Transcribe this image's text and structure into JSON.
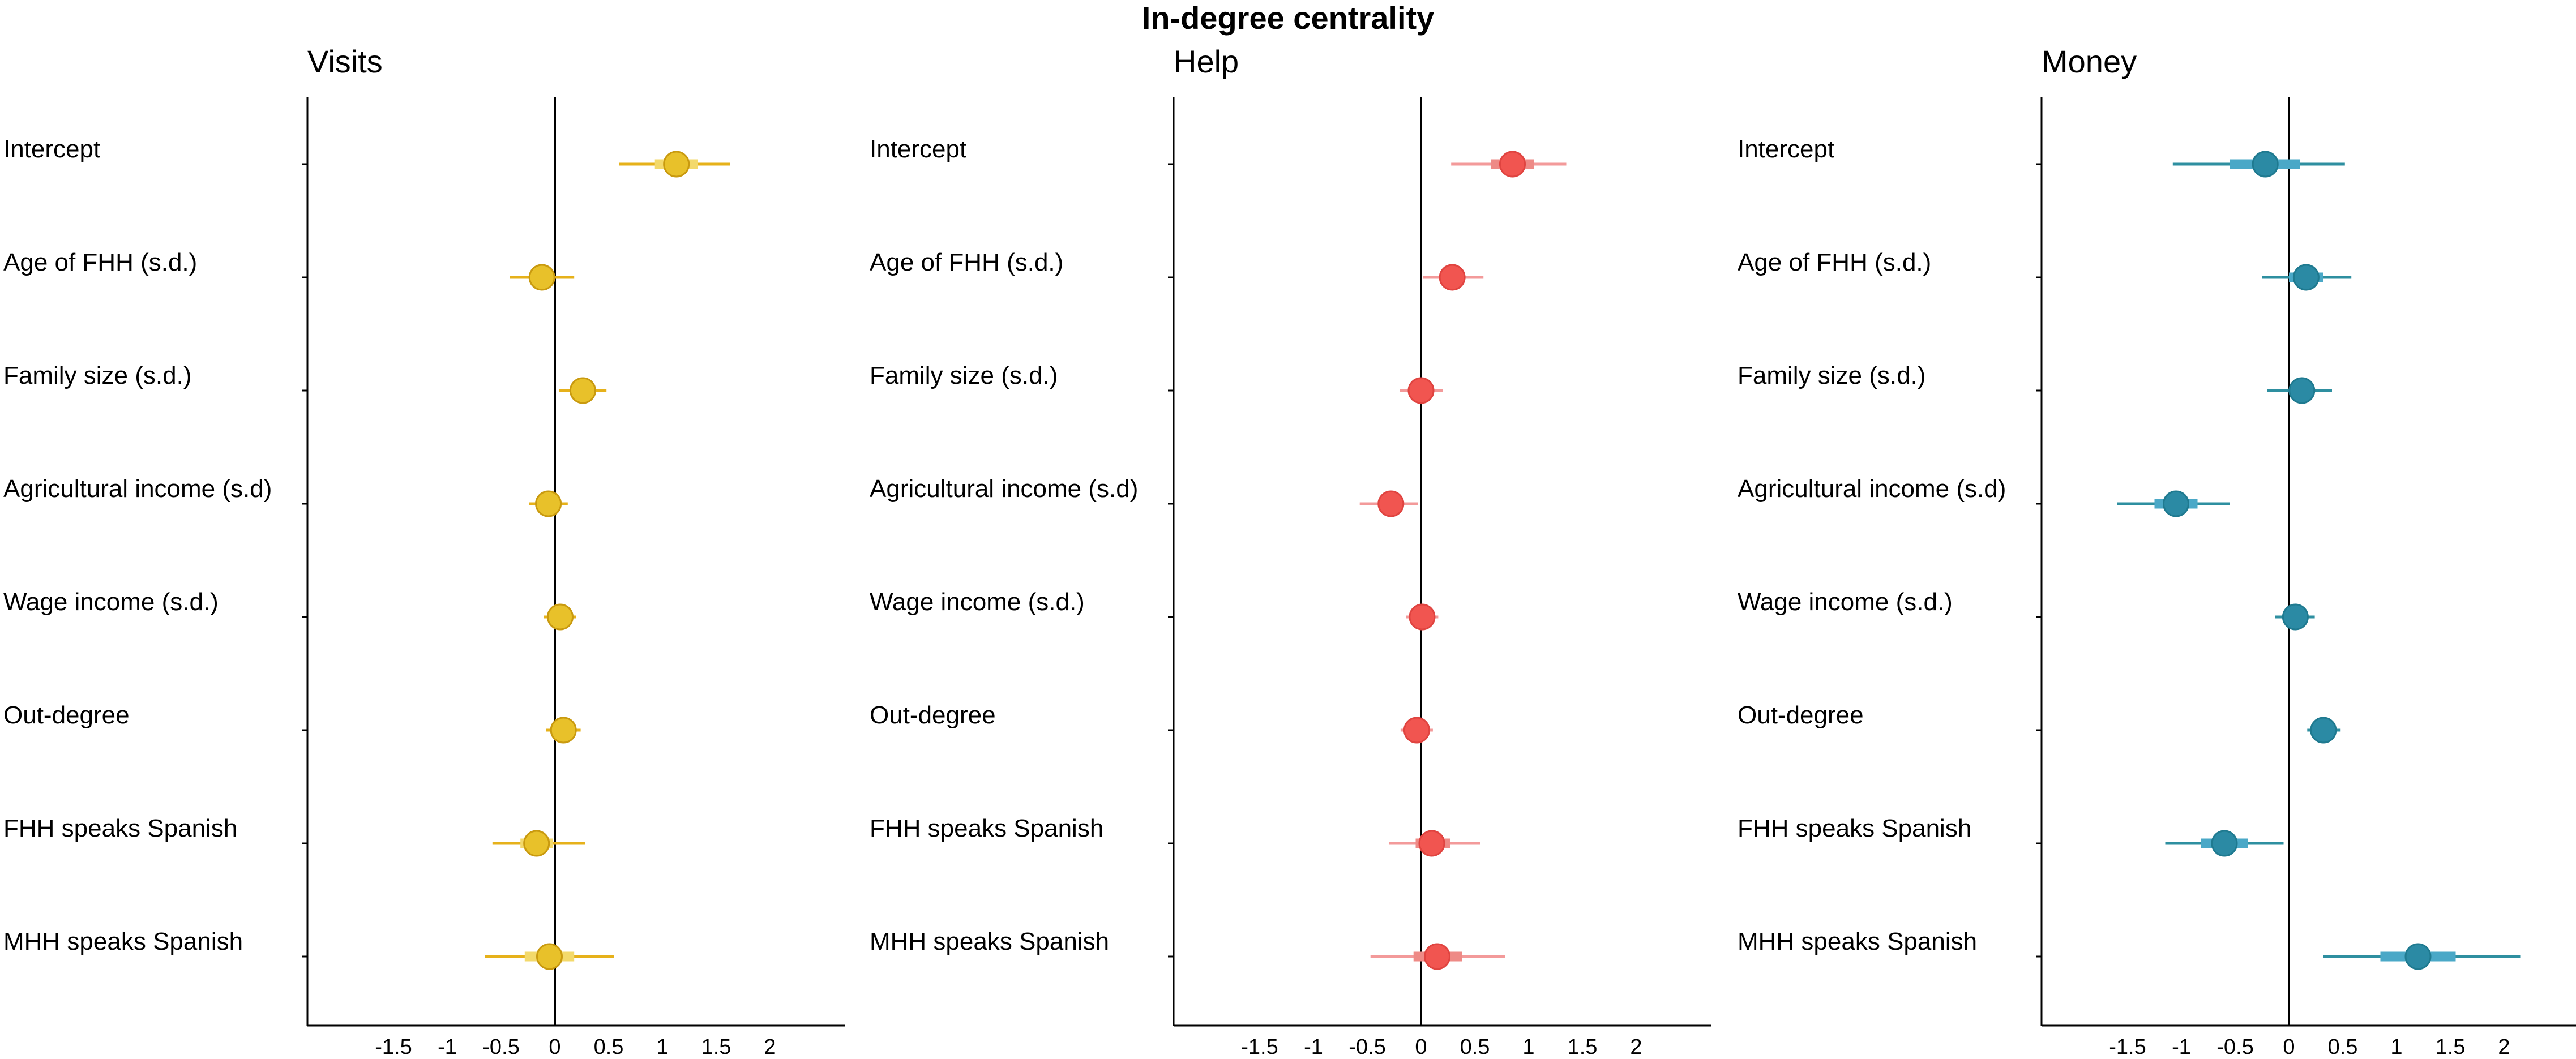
{
  "title": "In-degree centrality",
  "chart_data": [
    {
      "type": "forest",
      "title": "Visits",
      "color": "#E6B11A",
      "point_fill": "#E8C12A",
      "point_stroke": "#C99A0F",
      "inner_color": "#F3D96B",
      "xlim": [
        -2.3,
        2.7
      ],
      "ticks": [
        -1.5,
        -1,
        -0.5,
        0,
        0.5,
        1,
        1.5,
        2
      ],
      "tick_labels": [
        "-1.5",
        "-1",
        "-0.5",
        "0",
        "0.5",
        "1",
        "1.5",
        "2"
      ],
      "rows": [
        {
          "label": "Intercept",
          "est": 1.13,
          "lo95": 0.6,
          "hi95": 1.63,
          "lo50": 0.93,
          "hi50": 1.33
        },
        {
          "label": "Age of FHH (s.d.)",
          "est": -0.12,
          "lo95": -0.42,
          "hi95": 0.18,
          "lo50": -0.22,
          "hi50": -0.02
        },
        {
          "label": "Family size (s.d.)",
          "est": 0.26,
          "lo95": 0.04,
          "hi95": 0.48,
          "lo50": 0.18,
          "hi50": 0.34
        },
        {
          "label": "Agricultural income (s.d)",
          "est": -0.06,
          "lo95": -0.24,
          "hi95": 0.12,
          "lo50": -0.12,
          "hi50": 0.0
        },
        {
          "label": "Wage income (s.d.)",
          "est": 0.05,
          "lo95": -0.1,
          "hi95": 0.2,
          "lo50": 0.0,
          "hi50": 0.1
        },
        {
          "label": "Out-degree",
          "est": 0.08,
          "lo95": -0.08,
          "hi95": 0.24,
          "lo50": 0.03,
          "hi50": 0.13
        },
        {
          "label": "FHH speaks Spanish",
          "est": -0.17,
          "lo95": -0.58,
          "hi95": 0.28,
          "lo50": -0.32,
          "hi50": -0.02
        },
        {
          "label": "MHH speaks Spanish",
          "est": -0.05,
          "lo95": -0.65,
          "hi95": 0.55,
          "lo50": -0.28,
          "hi50": 0.18
        }
      ]
    },
    {
      "type": "forest",
      "title": "Help",
      "color": "#F39A9A",
      "point_fill": "#F15550",
      "point_stroke": "#E04440",
      "inner_color": "#EE8A86",
      "xlim": [
        -2.3,
        2.7
      ],
      "ticks": [
        -1.5,
        -1,
        -0.5,
        0,
        0.5,
        1,
        1.5,
        2
      ],
      "tick_labels": [
        "-1.5",
        "-1",
        "-0.5",
        "0",
        "0.5",
        "1",
        "1.5",
        "2"
      ],
      "rows": [
        {
          "label": "Intercept",
          "est": 0.85,
          "lo95": 0.28,
          "hi95": 1.35,
          "lo50": 0.65,
          "hi50": 1.05
        },
        {
          "label": "Age of FHH (s.d.)",
          "est": 0.29,
          "lo95": 0.02,
          "hi95": 0.58,
          "lo50": 0.19,
          "hi50": 0.39
        },
        {
          "label": "Family size (s.d.)",
          "est": 0.0,
          "lo95": -0.2,
          "hi95": 0.2,
          "lo50": -0.07,
          "hi50": 0.07
        },
        {
          "label": "Agricultural income (s.d)",
          "est": -0.28,
          "lo95": -0.57,
          "hi95": -0.03,
          "lo50": -0.38,
          "hi50": -0.18
        },
        {
          "label": "Wage income (s.d.)",
          "est": 0.01,
          "lo95": -0.14,
          "hi95": 0.16,
          "lo50": -0.04,
          "hi50": 0.06
        },
        {
          "label": "Out-degree",
          "est": -0.04,
          "lo95": -0.19,
          "hi95": 0.11,
          "lo50": -0.09,
          "hi50": 0.01
        },
        {
          "label": "FHH speaks Spanish",
          "est": 0.1,
          "lo95": -0.3,
          "hi95": 0.55,
          "lo50": -0.05,
          "hi50": 0.27
        },
        {
          "label": "MHH speaks Spanish",
          "est": 0.15,
          "lo95": -0.47,
          "hi95": 0.78,
          "lo50": -0.07,
          "hi50": 0.38
        }
      ]
    },
    {
      "type": "forest",
      "title": "Money",
      "color": "#2E8FA0",
      "point_fill": "#2B8AA4",
      "point_stroke": "#1F7A90",
      "inner_color": "#4AA8C7",
      "xlim": [
        -2.3,
        2.7
      ],
      "ticks": [
        -1.5,
        -1,
        -0.5,
        0,
        0.5,
        1,
        1.5,
        2
      ],
      "tick_labels": [
        "-1.5",
        "-1",
        "-0.5",
        "0",
        "0.5",
        "1",
        "1.5",
        "2"
      ],
      "rows": [
        {
          "label": "Intercept",
          "est": -0.22,
          "lo95": -1.08,
          "hi95": 0.52,
          "lo50": -0.55,
          "hi50": 0.1
        },
        {
          "label": "Age of FHH (s.d.)",
          "est": 0.16,
          "lo95": -0.25,
          "hi95": 0.58,
          "lo50": 0.0,
          "hi50": 0.32
        },
        {
          "label": "Family size (s.d.)",
          "est": 0.12,
          "lo95": -0.2,
          "hi95": 0.4,
          "lo50": 0.01,
          "hi50": 0.23
        },
        {
          "label": "Agricultural income (s.d)",
          "est": -1.05,
          "lo95": -1.6,
          "hi95": -0.55,
          "lo50": -1.25,
          "hi50": -0.85
        },
        {
          "label": "Wage income (s.d.)",
          "est": 0.06,
          "lo95": -0.13,
          "hi95": 0.24,
          "lo50": -0.01,
          "hi50": 0.13
        },
        {
          "label": "Out-degree",
          "est": 0.32,
          "lo95": 0.17,
          "hi95": 0.48,
          "lo50": 0.26,
          "hi50": 0.38
        },
        {
          "label": "FHH speaks Spanish",
          "est": -0.6,
          "lo95": -1.15,
          "hi95": -0.05,
          "lo50": -0.82,
          "hi50": -0.38
        },
        {
          "label": "MHH speaks Spanish",
          "est": 1.2,
          "lo95": 0.32,
          "hi95": 2.15,
          "lo50": 0.85,
          "hi50": 1.55
        }
      ]
    }
  ]
}
